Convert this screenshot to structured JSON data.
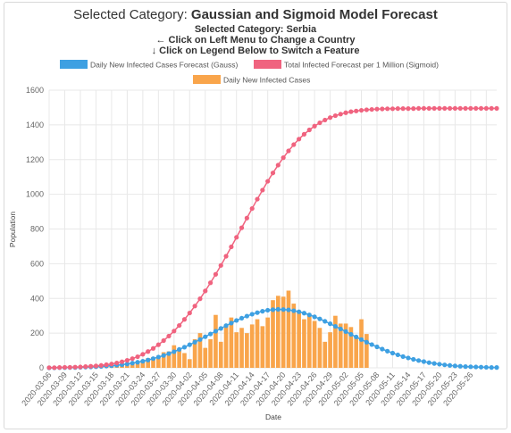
{
  "header": {
    "title_prefix": "Selected Category: ",
    "title_bold": "Gaussian and Sigmoid Model Forecast",
    "sub1": "Selected Category: Serbia",
    "sub2": "← Click on Left Menu to Change a Country",
    "sub3": "↓ Click on Legend Below to Switch a Feature"
  },
  "colors": {
    "gauss": "#3ea0e2",
    "sigmoid": "#f0637f",
    "bars": "#f9a54b",
    "grid": "#e8e8e8"
  },
  "chart_data": {
    "type": "bar",
    "xlabel": "Date",
    "ylabel": "Population",
    "ylim": [
      0,
      1600
    ],
    "yticks": [
      0,
      200,
      400,
      600,
      800,
      1000,
      1200,
      1400,
      1600
    ],
    "grid": true,
    "legend_position": "top",
    "x_start": "2020-03-06",
    "x_labels": [
      "2020-03-06",
      "2020-03-09",
      "2020-03-12",
      "2020-03-15",
      "2020-03-18",
      "2020-03-21",
      "2020-03-24",
      "2020-03-27",
      "2020-03-30",
      "2020-04-02",
      "2020-04-05",
      "2020-04-08",
      "2020-04-11",
      "2020-04-14",
      "2020-04-17",
      "2020-04-20",
      "2020-04-23",
      "2020-04-26",
      "2020-04-29",
      "2020-05-02",
      "2020-05-05",
      "2020-05-08",
      "2020-05-11",
      "2020-05-14",
      "2020-05-17",
      "2020-05-20",
      "2020-05-23",
      "2020-05-26"
    ],
    "series": [
      {
        "name": "Daily New Infected Cases Forecast (Gauss)",
        "type": "line",
        "values": [
          0,
          0,
          1,
          1,
          2,
          2,
          3,
          4,
          5,
          6,
          8,
          10,
          12,
          15,
          18,
          22,
          27,
          32,
          38,
          45,
          53,
          62,
          71,
          82,
          93,
          106,
          119,
          133,
          148,
          163,
          179,
          195,
          211,
          227,
          243,
          258,
          273,
          286,
          298,
          309,
          318,
          326,
          332,
          335,
          337,
          336,
          334,
          329,
          323,
          315,
          305,
          294,
          282,
          268,
          254,
          239,
          224,
          209,
          193,
          178,
          163,
          148,
          134,
          121,
          108,
          96,
          85,
          75,
          65,
          57,
          49,
          42,
          36,
          30,
          25,
          21,
          17,
          14,
          11,
          9,
          7,
          6,
          5,
          4,
          3,
          2,
          2
        ]
      },
      {
        "name": "Total Infected Forecast per 1 Million (Sigmoid)",
        "type": "line",
        "values": [
          1,
          1,
          2,
          3,
          3,
          4,
          5,
          7,
          9,
          11,
          14,
          18,
          22,
          28,
          35,
          43,
          53,
          64,
          78,
          94,
          112,
          133,
          157,
          183,
          212,
          244,
          279,
          316,
          356,
          398,
          443,
          490,
          539,
          590,
          643,
          697,
          752,
          807,
          863,
          918,
          972,
          1024,
          1075,
          1123,
          1168,
          1211,
          1250,
          1286,
          1318,
          1346,
          1371,
          1393,
          1412,
          1428,
          1442,
          1453,
          1462,
          1470,
          1476,
          1480,
          1484,
          1487,
          1489,
          1491,
          1492,
          1493,
          1493,
          1494,
          1494,
          1494,
          1494,
          1495,
          1495,
          1495,
          1495,
          1495,
          1495,
          1495,
          1495,
          1495,
          1495,
          1495,
          1495,
          1495,
          1495,
          1495,
          1495
        ]
      },
      {
        "name": "Daily New Infected Cases",
        "type": "bar",
        "values": [
          1,
          0,
          1,
          4,
          5,
          6,
          2,
          5,
          8,
          10,
          12,
          14,
          16,
          22,
          24,
          26,
          30,
          38,
          45,
          56,
          62,
          70,
          90,
          95,
          130,
          110,
          85,
          50,
          165,
          200,
          115,
          165,
          305,
          150,
          250,
          290,
          205,
          230,
          200,
          250,
          280,
          240,
          290,
          390,
          415,
          410,
          445,
          370,
          320,
          280,
          305,
          270,
          230,
          150,
          205,
          300,
          255,
          255,
          235,
          180,
          280,
          195
        ]
      }
    ]
  }
}
